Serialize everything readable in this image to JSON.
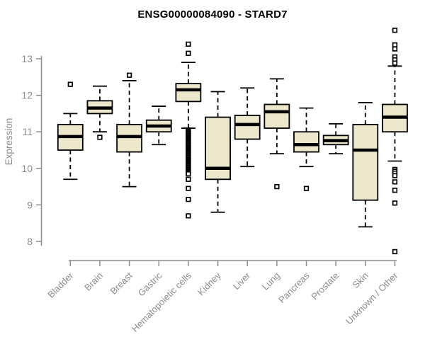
{
  "header": {
    "title": "ENSG00000084090 - STARD7"
  },
  "chart_data": {
    "type": "boxplot",
    "title": "ENSG00000084090 - STARD7",
    "xlabel": "",
    "ylabel": "Expression",
    "yticks": [
      8,
      9,
      10,
      11,
      12,
      13
    ],
    "ylim": [
      7.55,
      13.95
    ],
    "grid": false,
    "legend": "none",
    "colors": {
      "box_fill": "#EDE7CC",
      "box_border": "#000000",
      "median": "#000000",
      "axis_text": "#8C8C8C",
      "title_text": "#000000",
      "background": "#FFFFFF"
    },
    "categories": [
      "Bladder",
      "Brain",
      "Breast",
      "Gastric",
      "Hematopoietic cells",
      "Kidney",
      "Liver",
      "Lung",
      "Pancreas",
      "Prostate",
      "Skin",
      "Unknown / Other"
    ],
    "boxes": [
      {
        "category": "Bladder",
        "whisker_low": 9.7,
        "q1": 10.5,
        "median": 10.87,
        "q3": 11.2,
        "whisker_high": 11.5,
        "outliers": [
          12.3
        ]
      },
      {
        "category": "Brain",
        "whisker_low": 11.0,
        "q1": 11.5,
        "median": 11.65,
        "q3": 11.85,
        "whisker_high": 12.25,
        "outliers": [
          10.85
        ]
      },
      {
        "category": "Breast",
        "whisker_low": 9.5,
        "q1": 10.45,
        "median": 10.87,
        "q3": 11.2,
        "whisker_high": 12.4,
        "outliers": [
          12.55
        ]
      },
      {
        "category": "Gastric",
        "whisker_low": 10.65,
        "q1": 11.0,
        "median": 11.16,
        "q3": 11.32,
        "whisker_high": 11.7,
        "outliers": []
      },
      {
        "category": "Hematopoietic cells",
        "whisker_low": 11.1,
        "q1": 11.83,
        "median": 12.15,
        "q3": 12.32,
        "whisker_high": 12.9,
        "outliers": [
          13.4,
          13.15,
          11.05,
          11.02,
          10.99,
          10.96,
          10.93,
          10.9,
          10.87,
          10.84,
          10.81,
          10.78,
          10.75,
          10.72,
          10.69,
          10.66,
          10.63,
          10.6,
          10.57,
          10.54,
          10.51,
          10.48,
          10.45,
          10.42,
          10.39,
          10.36,
          10.33,
          10.3,
          10.27,
          10.24,
          10.21,
          10.18,
          10.15,
          10.12,
          10.09,
          10.06,
          10.03,
          10.0,
          9.97,
          9.94,
          9.91,
          9.88,
          9.85,
          9.7,
          9.45,
          9.15,
          8.7
        ]
      },
      {
        "category": "Kidney",
        "whisker_low": 8.8,
        "q1": 9.7,
        "median": 10.0,
        "q3": 11.4,
        "whisker_high": 12.1,
        "outliers": []
      },
      {
        "category": "Liver",
        "whisker_low": 10.05,
        "q1": 10.8,
        "median": 11.2,
        "q3": 11.45,
        "whisker_high": 12.2,
        "outliers": []
      },
      {
        "category": "Lung",
        "whisker_low": 10.4,
        "q1": 11.1,
        "median": 11.55,
        "q3": 11.75,
        "whisker_high": 12.45,
        "outliers": [
          9.5
        ]
      },
      {
        "category": "Pancreas",
        "whisker_low": 10.05,
        "q1": 10.45,
        "median": 10.65,
        "q3": 11.0,
        "whisker_high": 11.65,
        "outliers": [
          9.45
        ]
      },
      {
        "category": "Prostate",
        "whisker_low": 10.4,
        "q1": 10.65,
        "median": 10.76,
        "q3": 10.9,
        "whisker_high": 11.22,
        "outliers": []
      },
      {
        "category": "Skin",
        "whisker_low": 8.4,
        "q1": 9.13,
        "median": 10.5,
        "q3": 11.2,
        "whisker_high": 11.8,
        "outliers": []
      },
      {
        "category": "Unknown / Other",
        "whisker_low": 10.2,
        "q1": 11.0,
        "median": 11.4,
        "q3": 11.75,
        "whisker_high": 12.8,
        "outliers": [
          13.78,
          13.38,
          13.27,
          13.05,
          12.97,
          12.88,
          9.97,
          9.92,
          9.87,
          9.8,
          9.63,
          9.4,
          9.05,
          7.72
        ]
      }
    ]
  }
}
